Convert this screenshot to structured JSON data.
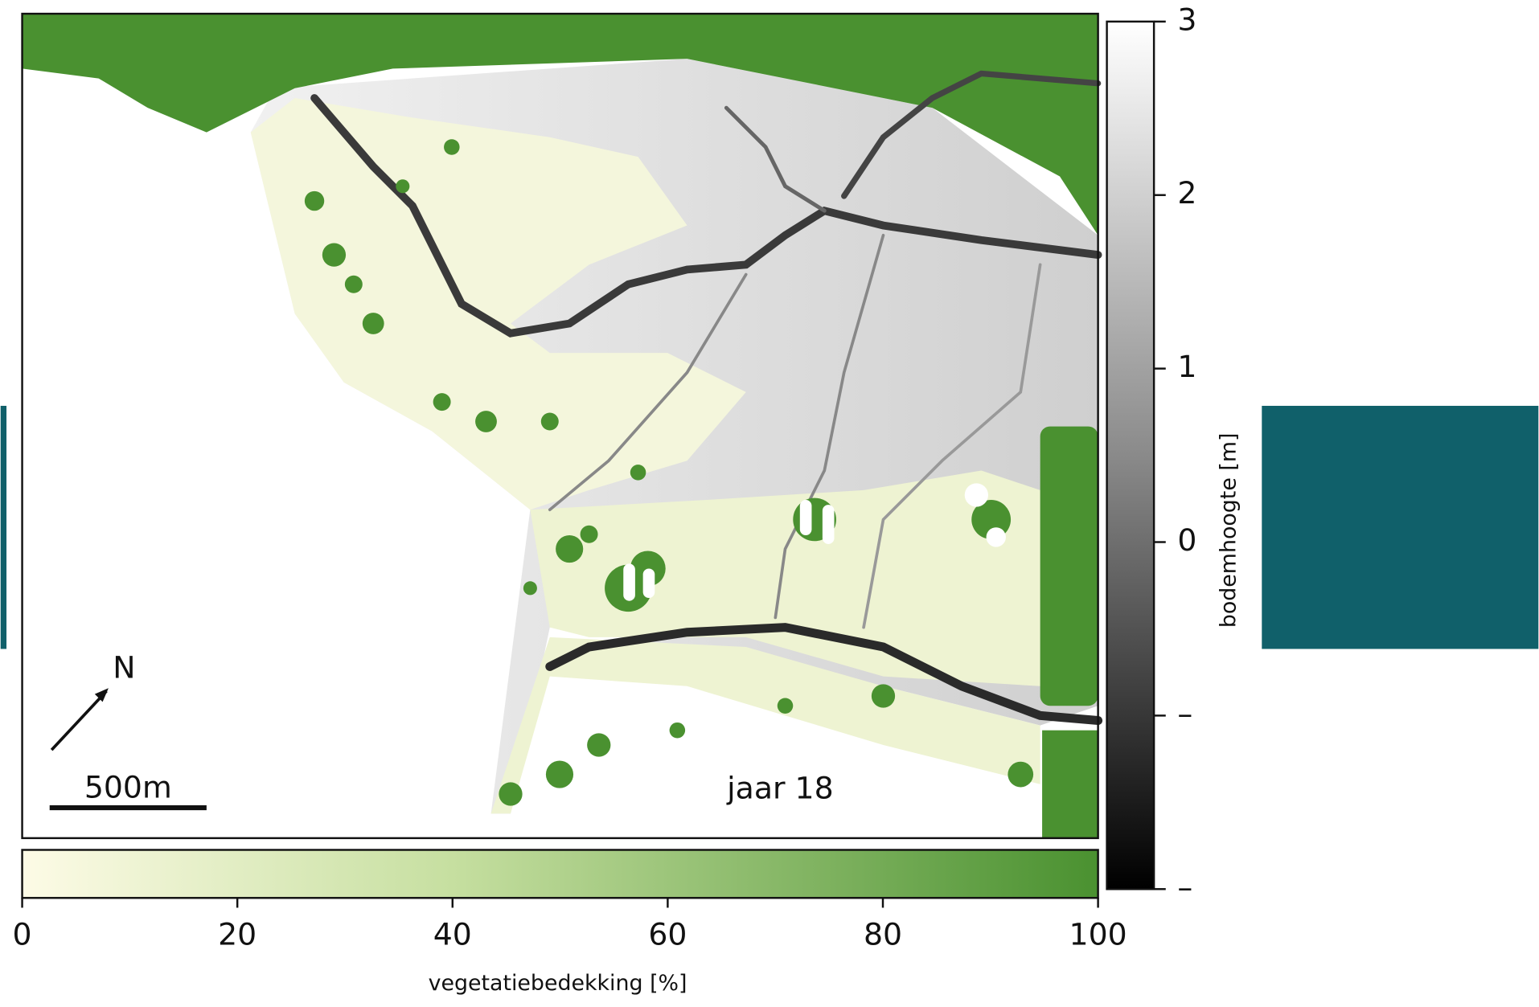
{
  "map": {
    "north_label": "N",
    "scale_label": "500m",
    "year_label": "jaar 18"
  },
  "elevation_colorbar": {
    "label": "bodemhoogte [m]",
    "lim": [
      -2,
      3
    ],
    "ticks": [
      3,
      2,
      1,
      0,
      {
        "value": -1,
        "label": "–"
      },
      {
        "value": -2,
        "label": "–"
      }
    ]
  },
  "vegetation_colorbar": {
    "label": "vegetatiebedekking [%]",
    "lim": [
      0,
      100
    ],
    "ticks": [
      0,
      20,
      40,
      60,
      80,
      100
    ]
  }
}
